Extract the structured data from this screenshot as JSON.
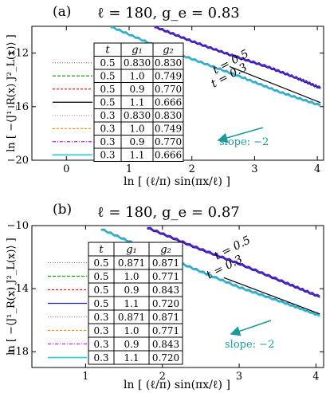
{
  "panel_a": {
    "letter": "(a)",
    "title": "ℓ = 180, g_e = 0.83",
    "ylabel": "ln [ −⟨J¹_R(x) J²_L(x)⟩ ]",
    "xlabel": "ln [ (ℓ/π) sin(πx/ℓ) ]",
    "slope_label": "slope: −2",
    "t_labels": [
      "t = 0.5",
      "t = 0.3"
    ]
  },
  "panel_b": {
    "letter": "(b)",
    "title": "ℓ = 180, g_e = 0.87",
    "ylabel": "ln [ −⟨J¹_R(x) J²_L(x)⟩ ]",
    "xlabel": "ln [ (ℓ/π) sin(πx/ℓ) ]",
    "slope_label": "slope: −2",
    "t_labels": [
      "t = 0.5",
      "t = 0.3"
    ]
  },
  "colors": {
    "series_a": [
      "#b07070",
      "#1a9a1a",
      "#e02020",
      "#000000",
      "#d09090",
      "#ff8c1a",
      "#d020d0",
      "#30d0e0"
    ],
    "series_b": [
      "#b07070",
      "#1a9a1a",
      "#e02020",
      "#2020b0",
      "#d09090",
      "#ff8c1a",
      "#d020d0",
      "#30d0e0"
    ],
    "curve_t05": "#5520c0",
    "curve_t03": "#40a0c0",
    "reference": "#000000",
    "slope_arrow": "#1a9a9a"
  },
  "chart_data": [
    {
      "type": "line",
      "panel": "(a)",
      "title": "ℓ = 180, g_e = 0.83",
      "xlabel": "ln [ (ℓ/π) sin(πx/ℓ) ]",
      "ylabel": "ln [ −⟨J¹_R(x) J²_L(x)⟩ ]",
      "xlim": [
        -0.55,
        4.1
      ],
      "ylim": [
        -20,
        -10
      ],
      "xticks": [
        "0",
        "1",
        "2",
        "3",
        "4"
      ],
      "yticks": [
        "−20",
        "−16",
        "−12"
      ],
      "table": {
        "headers": [
          "t",
          "g₁",
          "g₂"
        ],
        "rows": [
          [
            "0.5",
            "0.830",
            "0.830"
          ],
          [
            "0.5",
            "1.0",
            "0.749"
          ],
          [
            "0.5",
            "0.9",
            "0.770"
          ],
          [
            "0.5",
            "1.1",
            "0.666"
          ],
          [
            "0.3",
            "0.830",
            "0.830"
          ],
          [
            "0.3",
            "1.0",
            "0.749"
          ],
          [
            "0.3",
            "0.9",
            "0.770"
          ],
          [
            "0.3",
            "1.1",
            "0.666"
          ]
        ]
      },
      "series": [
        {
          "group": "t = 0.5",
          "x": [
            1.4,
            2.0,
            2.6,
            3.2,
            3.7,
            4.05
          ],
          "y": [
            -10.0,
            -11.1,
            -12.1,
            -13.0,
            -13.9,
            -14.6
          ]
        },
        {
          "group": "t = 0.3",
          "x": [
            0.7,
            1.4,
            2.1,
            2.8,
            3.4,
            4.05
          ],
          "y": [
            -10.0,
            -11.4,
            -12.6,
            -13.8,
            -14.9,
            -15.9
          ]
        }
      ],
      "reference_slope": {
        "slope": -2,
        "x": [
          2.6,
          4.05
        ],
        "y": [
          -13.0,
          -15.7
        ]
      },
      "annotation": "slope: −2"
    },
    {
      "type": "line",
      "panel": "(b)",
      "title": "ℓ = 180, g_e = 0.87",
      "xlabel": "ln [ (ℓ/π) sin(πx/ℓ) ]",
      "ylabel": "ln [ −⟨J¹_R(x) J²_L(x)⟩ ]",
      "xlim": [
        0.3,
        4.1
      ],
      "ylim": [
        -19,
        -10
      ],
      "xticks": [
        "1",
        "2",
        "3",
        "4"
      ],
      "yticks": [
        "−18",
        "−14",
        "−10"
      ],
      "table": {
        "headers": [
          "t",
          "g₁",
          "g₂"
        ],
        "rows": [
          [
            "0.5",
            "0.871",
            "0.871"
          ],
          [
            "0.5",
            "1.0",
            "0.771"
          ],
          [
            "0.5",
            "0.9",
            "0.843"
          ],
          [
            "0.5",
            "1.1",
            "0.720"
          ],
          [
            "0.3",
            "0.871",
            "0.871"
          ],
          [
            "0.3",
            "1.0",
            "0.771"
          ],
          [
            "0.3",
            "0.9",
            "0.843"
          ],
          [
            "0.3",
            "1.1",
            "0.720"
          ]
        ]
      },
      "series": [
        {
          "group": "t = 0.5",
          "x": [
            1.8,
            2.4,
            3.0,
            3.6,
            4.05
          ],
          "y": [
            -10.1,
            -11.3,
            -12.4,
            -13.6,
            -14.5
          ]
        },
        {
          "group": "t = 0.3",
          "x": [
            1.2,
            1.8,
            2.4,
            3.0,
            3.6,
            4.05
          ],
          "y": [
            -10.2,
            -11.5,
            -12.7,
            -13.9,
            -14.9,
            -15.7
          ]
        }
      ],
      "reference_slope": {
        "slope": -2,
        "x": [
          2.8,
          4.05
        ],
        "y": [
          -13.3,
          -15.6
        ]
      },
      "annotation": "slope: −2"
    }
  ]
}
